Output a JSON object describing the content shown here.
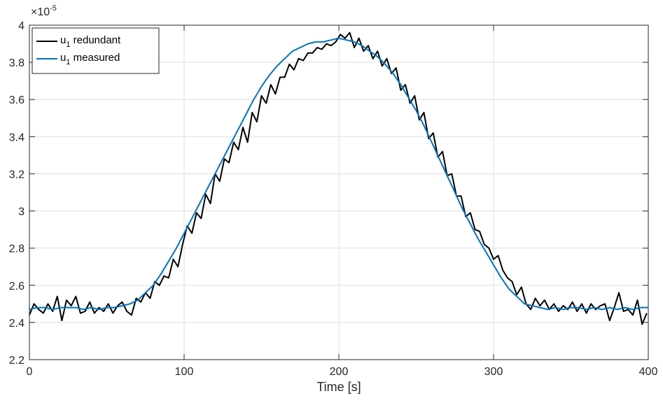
{
  "chart_data": {
    "type": "line",
    "title": "",
    "xlabel": "Time [s]",
    "ylabel": "",
    "xlim": [
      0,
      400
    ],
    "ylim": [
      2.2,
      4.0
    ],
    "y_exponent_label": "×10",
    "y_exponent_power": "-5",
    "x_ticks": [
      0,
      100,
      200,
      300,
      400
    ],
    "x_tick_labels": [
      "0",
      "100",
      "200",
      "300",
      "400"
    ],
    "y_ticks": [
      2.2,
      2.4,
      2.6,
      2.8,
      3.0,
      3.2,
      3.4,
      3.6,
      3.8,
      4.0
    ],
    "y_tick_labels": [
      "2.2",
      "2.4",
      "2.6",
      "2.8",
      "3",
      "3.2",
      "3.4",
      "3.6",
      "3.8",
      "4"
    ],
    "grid": true,
    "legend_position": "top-left",
    "series": [
      {
        "name_main": "u",
        "name_sub": "1",
        "name_rest": " redundant",
        "color": "#000000",
        "x": [
          0,
          3,
          6,
          9,
          12,
          15,
          18,
          21,
          24,
          27,
          30,
          33,
          36,
          39,
          42,
          45,
          48,
          51,
          54,
          57,
          60,
          63,
          66,
          69,
          72,
          75,
          78,
          81,
          84,
          87,
          90,
          93,
          96,
          99,
          102,
          105,
          108,
          111,
          114,
          117,
          120,
          123,
          126,
          129,
          132,
          135,
          138,
          141,
          144,
          147,
          150,
          153,
          156,
          159,
          162,
          165,
          168,
          171,
          174,
          177,
          180,
          183,
          186,
          189,
          192,
          195,
          198,
          201,
          204,
          207,
          210,
          213,
          216,
          219,
          222,
          225,
          228,
          231,
          234,
          237,
          240,
          243,
          246,
          249,
          252,
          255,
          258,
          261,
          264,
          267,
          270,
          273,
          276,
          279,
          282,
          285,
          288,
          291,
          294,
          297,
          300,
          303,
          306,
          309,
          312,
          315,
          318,
          321,
          324,
          327,
          330,
          333,
          336,
          339,
          342,
          345,
          348,
          351,
          354,
          357,
          360,
          363,
          366,
          369,
          372,
          375,
          378,
          381,
          384,
          387,
          390,
          393,
          396,
          399
        ],
        "y": [
          2.44,
          2.5,
          2.47,
          2.45,
          2.5,
          2.46,
          2.54,
          2.41,
          2.52,
          2.49,
          2.54,
          2.45,
          2.46,
          2.51,
          2.45,
          2.48,
          2.46,
          2.5,
          2.45,
          2.49,
          2.51,
          2.46,
          2.44,
          2.53,
          2.51,
          2.56,
          2.53,
          2.62,
          2.6,
          2.65,
          2.64,
          2.74,
          2.7,
          2.82,
          2.92,
          2.88,
          2.99,
          2.96,
          3.09,
          3.04,
          3.2,
          3.16,
          3.28,
          3.26,
          3.37,
          3.33,
          3.45,
          3.37,
          3.53,
          3.48,
          3.62,
          3.58,
          3.68,
          3.63,
          3.72,
          3.72,
          3.79,
          3.76,
          3.82,
          3.81,
          3.85,
          3.85,
          3.88,
          3.87,
          3.9,
          3.89,
          3.91,
          3.95,
          3.93,
          3.96,
          3.88,
          3.93,
          3.86,
          3.89,
          3.82,
          3.86,
          3.78,
          3.82,
          3.74,
          3.77,
          3.65,
          3.68,
          3.58,
          3.62,
          3.49,
          3.53,
          3.39,
          3.42,
          3.29,
          3.32,
          3.19,
          3.2,
          3.08,
          3.08,
          2.97,
          2.99,
          2.9,
          2.89,
          2.82,
          2.8,
          2.74,
          2.76,
          2.68,
          2.64,
          2.62,
          2.55,
          2.59,
          2.5,
          2.47,
          2.53,
          2.49,
          2.52,
          2.47,
          2.5,
          2.46,
          2.49,
          2.47,
          2.51,
          2.46,
          2.5,
          2.45,
          2.5,
          2.47,
          2.49,
          2.5,
          2.41,
          2.48,
          2.56,
          2.46,
          2.47,
          2.44,
          2.52,
          2.39,
          2.45
        ]
      },
      {
        "name_main": "u",
        "name_sub": "1",
        "name_rest": " measured",
        "color": "#0072BD",
        "x": [
          0,
          5,
          10,
          15,
          20,
          25,
          30,
          35,
          40,
          45,
          50,
          55,
          60,
          65,
          70,
          75,
          80,
          85,
          90,
          95,
          100,
          105,
          110,
          115,
          120,
          125,
          130,
          135,
          140,
          145,
          150,
          155,
          160,
          165,
          170,
          175,
          180,
          185,
          190,
          195,
          200,
          205,
          210,
          215,
          220,
          225,
          230,
          235,
          240,
          245,
          250,
          255,
          260,
          265,
          270,
          275,
          280,
          285,
          290,
          295,
          300,
          305,
          310,
          315,
          320,
          325,
          330,
          335,
          340,
          345,
          350,
          355,
          360,
          365,
          370,
          375,
          380,
          385,
          390,
          395,
          400
        ],
        "y": [
          2.47,
          2.48,
          2.48,
          2.47,
          2.48,
          2.48,
          2.48,
          2.47,
          2.48,
          2.47,
          2.48,
          2.48,
          2.49,
          2.5,
          2.52,
          2.56,
          2.6,
          2.66,
          2.73,
          2.8,
          2.88,
          2.96,
          3.04,
          3.12,
          3.2,
          3.28,
          3.36,
          3.44,
          3.52,
          3.6,
          3.67,
          3.73,
          3.78,
          3.82,
          3.86,
          3.88,
          3.9,
          3.91,
          3.91,
          3.92,
          3.93,
          3.92,
          3.91,
          3.89,
          3.86,
          3.83,
          3.79,
          3.74,
          3.68,
          3.61,
          3.54,
          3.46,
          3.37,
          3.28,
          3.19,
          3.1,
          3.01,
          2.93,
          2.85,
          2.78,
          2.71,
          2.64,
          2.58,
          2.54,
          2.5,
          2.49,
          2.48,
          2.47,
          2.48,
          2.47,
          2.48,
          2.48,
          2.47,
          2.48,
          2.47,
          2.48,
          2.47,
          2.48,
          2.47,
          2.48,
          2.48
        ]
      }
    ]
  }
}
